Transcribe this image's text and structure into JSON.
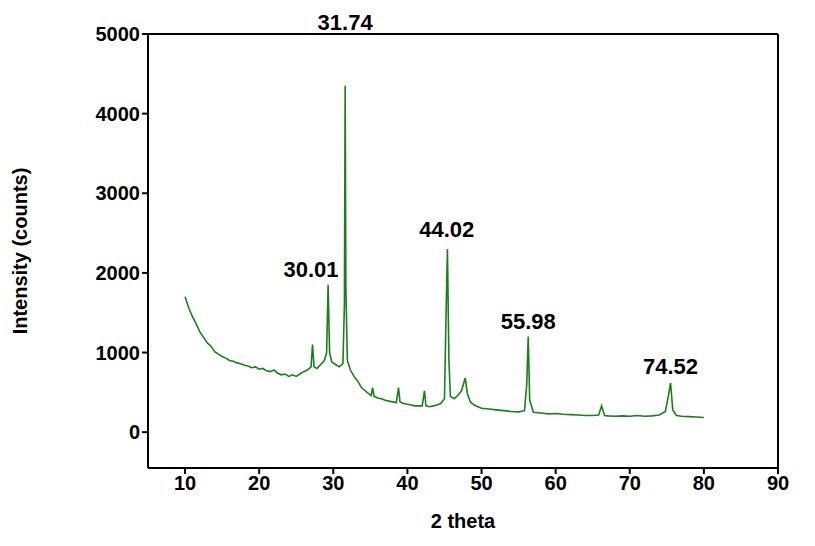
{
  "chart_data": {
    "type": "line",
    "xlabel": "2 theta",
    "ylabel": "Intensity (counts)",
    "color": "#1b7f1b",
    "grid": false,
    "xlim": [
      5,
      90
    ],
    "ylim": [
      -450,
      5000
    ],
    "xticks": [
      10,
      20,
      30,
      40,
      50,
      60,
      70,
      80,
      90
    ],
    "yticks": [
      0,
      1000,
      2000,
      3000,
      4000,
      5000
    ],
    "x": [
      10,
      10.5,
      11,
      11.5,
      12,
      12.5,
      13,
      13.5,
      14,
      14.5,
      15,
      15.5,
      16,
      16.5,
      17,
      17.5,
      18,
      18.5,
      19,
      19.5,
      20,
      20.5,
      21,
      21.5,
      22,
      22.5,
      23,
      23.5,
      24,
      24.5,
      25,
      25.5,
      26,
      26.5,
      27,
      27.2,
      27.4,
      27.8,
      28.3,
      28.8,
      29.1,
      29.3,
      29.5,
      29.8,
      30.3,
      30.8,
      31.3,
      31.5,
      31.6,
      31.7,
      31.9,
      32.3,
      32.8,
      33.3,
      33.8,
      34.3,
      34.8,
      35.1,
      35.3,
      35.5,
      36,
      36.5,
      37,
      37.5,
      38,
      38.5,
      38.8,
      39,
      39.5,
      40,
      40.5,
      41,
      41.5,
      42,
      42.3,
      42.5,
      43,
      43.5,
      44,
      44.5,
      45,
      45.2,
      45.4,
      45.6,
      45.8,
      46.3,
      46.8,
      47.3,
      47.8,
      48.1,
      48.5,
      49,
      49.5,
      50,
      51,
      52,
      53,
      54,
      55,
      55.8,
      56.1,
      56.3,
      56.5,
      57,
      58,
      59,
      60,
      61,
      62,
      63,
      64,
      65,
      65.8,
      66.2,
      66.6,
      67,
      68,
      69,
      70,
      71,
      72,
      73,
      74,
      74.8,
      75.2,
      75.5,
      75.8,
      76.3,
      77,
      78,
      79,
      80
    ],
    "values": [
      1700,
      1560,
      1450,
      1360,
      1260,
      1190,
      1120,
      1080,
      1010,
      980,
      950,
      930,
      900,
      890,
      870,
      860,
      840,
      830,
      810,
      820,
      790,
      800,
      770,
      760,
      780,
      740,
      720,
      730,
      700,
      720,
      700,
      730,
      760,
      780,
      820,
      1100,
      820,
      800,
      850,
      900,
      1000,
      1850,
      1000,
      880,
      850,
      820,
      860,
      1600,
      4350,
      1800,
      900,
      780,
      700,
      640,
      560,
      520,
      480,
      460,
      560,
      450,
      430,
      420,
      400,
      390,
      380,
      370,
      560,
      380,
      360,
      350,
      340,
      330,
      330,
      330,
      520,
      330,
      320,
      330,
      340,
      360,
      420,
      1400,
      2300,
      900,
      450,
      420,
      460,
      520,
      680,
      480,
      380,
      340,
      320,
      300,
      290,
      280,
      270,
      260,
      255,
      270,
      600,
      1200,
      400,
      250,
      240,
      230,
      235,
      225,
      220,
      215,
      210,
      210,
      215,
      330,
      210,
      205,
      200,
      205,
      200,
      210,
      200,
      205,
      215,
      260,
      450,
      620,
      280,
      210,
      200,
      195,
      190,
      185
    ],
    "annotations": [
      {
        "text": "31.74",
        "x": 31.6,
        "y": 5000
      },
      {
        "text": "30.01",
        "x": 27,
        "y": 1900
      },
      {
        "text": "44.02",
        "x": 45.3,
        "y": 2400
      },
      {
        "text": "55.98",
        "x": 56.3,
        "y": 1250
      },
      {
        "text": "74.52",
        "x": 75.5,
        "y": 680
      }
    ]
  }
}
